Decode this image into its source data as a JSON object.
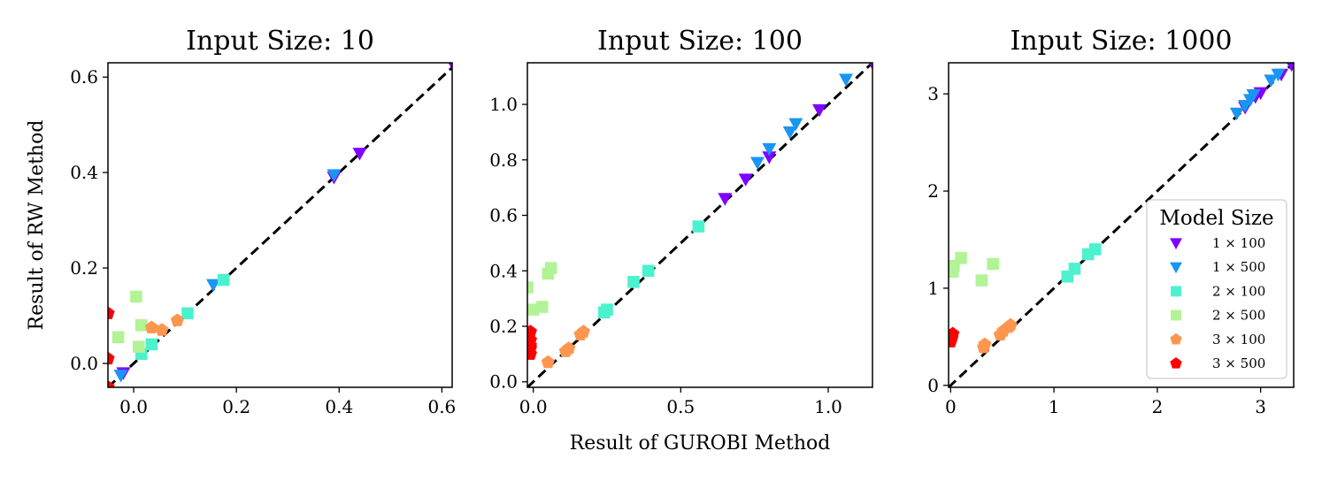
{
  "chart_data": [
    {
      "type": "scatter",
      "title": "Input Size: 10",
      "xlabel": "",
      "ylabel": "Result of RW Method",
      "xlim": [
        -0.05,
        0.62
      ],
      "ylim": [
        -0.05,
        0.63
      ],
      "xticks": [
        0.0,
        0.2,
        0.4,
        0.6
      ],
      "xtick_labels": [
        "0.0",
        "0.2",
        "0.4",
        "0.6"
      ],
      "yticks": [
        0.0,
        0.2,
        0.4,
        0.6
      ],
      "ytick_labels": [
        "0.0",
        "0.2",
        "0.4",
        "0.6"
      ],
      "diagonal": true,
      "series": [
        {
          "name": "1 × 100",
          "marker": "triangle-down",
          "color": "#8000ff",
          "points": [
            [
              -0.02,
              -0.02
            ],
            [
              0.39,
              0.39
            ],
            [
              0.44,
              0.44
            ],
            [
              0.62,
              0.63
            ]
          ]
        },
        {
          "name": "1 × 500",
          "marker": "triangle-down",
          "color": "#1996f3",
          "points": [
            [
              -0.025,
              -0.025
            ],
            [
              0.155,
              0.165
            ],
            [
              0.39,
              0.395
            ]
          ]
        },
        {
          "name": "2 × 100",
          "marker": "square",
          "color": "#4cf2ce",
          "points": [
            [
              0.015,
              0.02
            ],
            [
              0.035,
              0.04
            ],
            [
              0.105,
              0.105
            ],
            [
              0.175,
              0.175
            ]
          ]
        },
        {
          "name": "2 × 500",
          "marker": "square",
          "color": "#b2f396",
          "points": [
            [
              -0.03,
              0.055
            ],
            [
              0.005,
              0.14
            ],
            [
              0.01,
              0.035
            ],
            [
              0.015,
              0.08
            ]
          ]
        },
        {
          "name": "3 × 100",
          "marker": "pentagon",
          "color": "#ff964f",
          "points": [
            [
              0.035,
              0.075
            ],
            [
              0.055,
              0.07
            ],
            [
              0.085,
              0.09
            ]
          ]
        },
        {
          "name": "3 × 500",
          "marker": "pentagon",
          "color": "#ff0000",
          "points": [
            [
              -0.05,
              0.105
            ],
            [
              -0.05,
              0.01
            ],
            [
              -0.05,
              -0.05
            ]
          ]
        }
      ]
    },
    {
      "type": "scatter",
      "title": "Input Size: 100",
      "xlabel": "Result of GUROBI Method",
      "ylabel": "",
      "xlim": [
        -0.02,
        1.15
      ],
      "ylim": [
        -0.02,
        1.15
      ],
      "xticks": [
        0.0,
        0.5,
        1.0
      ],
      "xtick_labels": [
        "0.0",
        "0.5",
        "1.0"
      ],
      "yticks": [
        0.0,
        0.2,
        0.4,
        0.6,
        0.8,
        1.0
      ],
      "ytick_labels": [
        "0.0",
        "0.2",
        "0.4",
        "0.6",
        "0.8",
        "1.0"
      ],
      "diagonal": true,
      "series": [
        {
          "name": "1 × 100",
          "marker": "triangle-down",
          "color": "#8000ff",
          "points": [
            [
              0.65,
              0.66
            ],
            [
              0.72,
              0.73
            ],
            [
              0.8,
              0.81
            ],
            [
              0.97,
              0.98
            ],
            [
              1.15,
              1.15
            ]
          ]
        },
        {
          "name": "1 × 500",
          "marker": "triangle-down",
          "color": "#1996f3",
          "points": [
            [
              0.76,
              0.79
            ],
            [
              0.8,
              0.84
            ],
            [
              0.87,
              0.9
            ],
            [
              0.89,
              0.93
            ],
            [
              1.06,
              1.09
            ]
          ]
        },
        {
          "name": "2 × 100",
          "marker": "square",
          "color": "#4cf2ce",
          "points": [
            [
              0.24,
              0.25
            ],
            [
              0.25,
              0.26
            ],
            [
              0.34,
              0.36
            ],
            [
              0.39,
              0.4
            ],
            [
              0.56,
              0.56
            ]
          ]
        },
        {
          "name": "2 × 500",
          "marker": "square",
          "color": "#b2f396",
          "points": [
            [
              -0.02,
              0.34
            ],
            [
              0.0,
              0.26
            ],
            [
              0.03,
              0.27
            ],
            [
              0.05,
              0.39
            ],
            [
              0.06,
              0.41
            ]
          ]
        },
        {
          "name": "3 × 100",
          "marker": "pentagon",
          "color": "#ff964f",
          "points": [
            [
              0.05,
              0.07
            ],
            [
              0.11,
              0.11
            ],
            [
              0.12,
              0.12
            ],
            [
              0.16,
              0.17
            ],
            [
              0.17,
              0.18
            ]
          ]
        },
        {
          "name": "3 × 500",
          "marker": "pentagon",
          "color": "#ff0000",
          "points": [
            [
              -0.01,
              0.1
            ],
            [
              -0.01,
              0.13
            ],
            [
              -0.01,
              0.15
            ],
            [
              -0.01,
              0.18
            ],
            [
              -0.01,
              0.12
            ]
          ]
        }
      ]
    },
    {
      "type": "scatter",
      "title": "Input Size: 1000",
      "xlabel": "",
      "ylabel": "",
      "xlim": [
        -0.02,
        3.32
      ],
      "ylim": [
        -0.02,
        3.32
      ],
      "xticks": [
        0,
        1,
        2,
        3
      ],
      "xtick_labels": [
        "0",
        "1",
        "2",
        "3"
      ],
      "yticks": [
        0,
        1,
        2,
        3
      ],
      "ytick_labels": [
        "0",
        "1",
        "2",
        "3"
      ],
      "diagonal": true,
      "series": [
        {
          "name": "1 × 100",
          "marker": "triangle-down",
          "color": "#8000ff",
          "points": [
            [
              2.85,
              2.86
            ],
            [
              2.95,
              2.97
            ],
            [
              3.0,
              3.01
            ],
            [
              3.2,
              3.2
            ],
            [
              3.3,
              3.3
            ]
          ]
        },
        {
          "name": "1 × 500",
          "marker": "triangle-down",
          "color": "#1996f3",
          "points": [
            [
              2.77,
              2.8
            ],
            [
              2.85,
              2.88
            ],
            [
              2.9,
              2.94
            ],
            [
              2.93,
              2.99
            ],
            [
              3.1,
              3.14
            ],
            [
              3.17,
              3.2
            ]
          ]
        },
        {
          "name": "2 × 100",
          "marker": "square",
          "color": "#4cf2ce",
          "points": [
            [
              1.13,
              1.12
            ],
            [
              1.2,
              1.2
            ],
            [
              1.33,
              1.35
            ],
            [
              1.4,
              1.4
            ]
          ]
        },
        {
          "name": "2 × 500",
          "marker": "square",
          "color": "#b2f396",
          "points": [
            [
              0.02,
              1.17
            ],
            [
              0.03,
              1.23
            ],
            [
              0.1,
              1.31
            ],
            [
              0.3,
              1.08
            ],
            [
              0.41,
              1.25
            ]
          ]
        },
        {
          "name": "3 × 100",
          "marker": "pentagon",
          "color": "#ff964f",
          "points": [
            [
              0.32,
              0.39
            ],
            [
              0.33,
              0.42
            ],
            [
              0.48,
              0.52
            ],
            [
              0.51,
              0.56
            ],
            [
              0.56,
              0.6
            ],
            [
              0.58,
              0.62
            ]
          ]
        },
        {
          "name": "3 × 500",
          "marker": "pentagon",
          "color": "#ff0000",
          "points": [
            [
              0.0,
              0.45
            ],
            [
              0.01,
              0.5
            ],
            [
              0.02,
              0.53
            ],
            [
              0.01,
              0.48
            ]
          ]
        }
      ]
    }
  ],
  "legend": {
    "title": "Model Size",
    "placement": "lower-right of third panel",
    "entries": [
      {
        "label": "1 × 100",
        "marker": "triangle-down",
        "color": "#8000ff"
      },
      {
        "label": "1 × 500",
        "marker": "triangle-down",
        "color": "#1996f3"
      },
      {
        "label": "2 × 100",
        "marker": "square",
        "color": "#4cf2ce"
      },
      {
        "label": "2 × 500",
        "marker": "square",
        "color": "#b2f396"
      },
      {
        "label": "3 × 100",
        "marker": "pentagon",
        "color": "#ff964f"
      },
      {
        "label": "3 × 500",
        "marker": "pentagon",
        "color": "#ff0000"
      }
    ]
  }
}
